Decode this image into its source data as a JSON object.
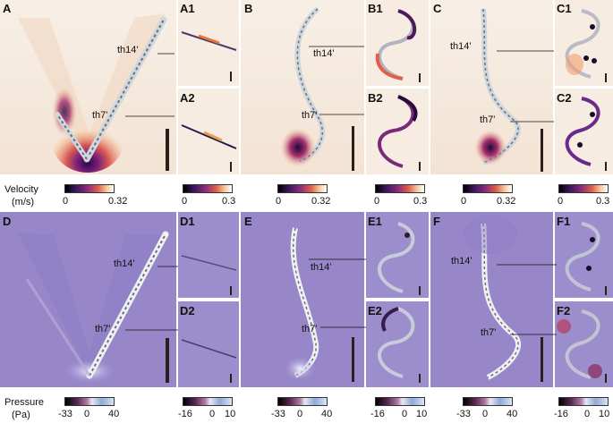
{
  "panels": {
    "A": "A",
    "A1": "A1",
    "A2": "A2",
    "B": "B",
    "B1": "B1",
    "B2": "B2",
    "C": "C",
    "C1": "C1",
    "C2": "C2",
    "D": "D",
    "D1": "D1",
    "D2": "D2",
    "E": "E",
    "E1": "E1",
    "E2": "E2",
    "F": "F",
    "F1": "F1",
    "F2": "F2"
  },
  "annotations": {
    "th14": "th14'",
    "th7": "th7'"
  },
  "velocity": {
    "label": "Velocity",
    "unit": "(m/s)",
    "large_ticks": [
      "0",
      "0.32"
    ],
    "small_ticks": [
      "0",
      "0.3"
    ]
  },
  "pressure": {
    "label": "Pressure",
    "unit": "(Pa)",
    "large_ticks": [
      "-33",
      "0",
      "40"
    ],
    "small_ticks": [
      "-16",
      "0",
      "10"
    ]
  }
}
